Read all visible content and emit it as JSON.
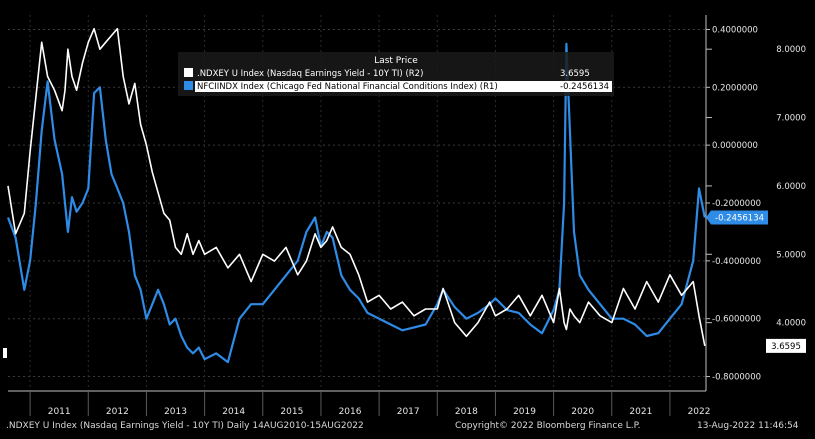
{
  "chart_data": {
    "type": "line",
    "legend_header": "Last Price",
    "x": [
      2010.62,
      2010.75,
      2010.9,
      2011.0,
      2011.1,
      2011.2,
      2011.3,
      2011.42,
      2011.55,
      2011.6,
      2011.65,
      2011.72,
      2011.8,
      2011.9,
      2012.0,
      2012.1,
      2012.2,
      2012.3,
      2012.4,
      2012.5,
      2012.6,
      2012.7,
      2012.8,
      2012.9,
      2013.0,
      2013.1,
      2013.2,
      2013.3,
      2013.4,
      2013.5,
      2013.6,
      2013.7,
      2013.8,
      2013.9,
      2014.0,
      2014.2,
      2014.4,
      2014.6,
      2014.8,
      2015.0,
      2015.2,
      2015.4,
      2015.6,
      2015.75,
      2015.9,
      2016.0,
      2016.1,
      2016.2,
      2016.35,
      2016.5,
      2016.65,
      2016.8,
      2017.0,
      2017.2,
      2017.4,
      2017.6,
      2017.8,
      2018.0,
      2018.1,
      2018.3,
      2018.5,
      2018.7,
      2018.9,
      2019.0,
      2019.2,
      2019.4,
      2019.6,
      2019.8,
      2020.0,
      2020.1,
      2020.18,
      2020.22,
      2020.28,
      2020.35,
      2020.45,
      2020.6,
      2020.8,
      2021.0,
      2021.2,
      2021.4,
      2021.6,
      2021.8,
      2022.0,
      2022.2,
      2022.4,
      2022.5,
      2022.6
    ],
    "series": [
      {
        "name": ".NDXEY U Index (Nasdaq Earnings Yield - 10Y TI)  (R2)",
        "axis": "right",
        "color": "#ffffff",
        "last_value": "3.6595",
        "values": [
          6.0,
          5.3,
          5.6,
          6.5,
          7.3,
          8.1,
          7.6,
          7.4,
          7.1,
          7.4,
          8.0,
          7.6,
          7.4,
          7.8,
          8.1,
          8.3,
          8.0,
          8.1,
          8.2,
          8.3,
          7.6,
          7.2,
          7.5,
          6.9,
          6.6,
          6.2,
          5.9,
          5.6,
          5.5,
          5.1,
          5.0,
          5.3,
          5.0,
          5.2,
          5.0,
          5.1,
          4.8,
          5.0,
          4.6,
          5.0,
          4.9,
          5.1,
          4.7,
          4.9,
          5.3,
          5.1,
          5.2,
          5.4,
          5.1,
          5.0,
          4.7,
          4.3,
          4.4,
          4.2,
          4.3,
          4.1,
          4.2,
          4.2,
          4.5,
          4.0,
          3.8,
          4.0,
          4.3,
          4.1,
          4.2,
          4.4,
          4.1,
          4.4,
          4.0,
          4.5,
          4.0,
          3.9,
          4.2,
          4.1,
          4.0,
          4.3,
          4.1,
          4.0,
          4.5,
          4.2,
          4.6,
          4.3,
          4.7,
          4.4,
          4.6,
          4.1,
          3.66
        ]
      },
      {
        "name": "NFCIINDX Index (Chicago Fed National Financial Conditions Index)  (R1)",
        "axis": "left",
        "color": "#2e8be6",
        "last_value": "-0.2456134",
        "values": [
          -0.25,
          -0.32,
          -0.5,
          -0.4,
          -0.2,
          0.05,
          0.22,
          0.02,
          -0.1,
          -0.2,
          -0.3,
          -0.18,
          -0.23,
          -0.2,
          -0.15,
          0.18,
          0.2,
          0.02,
          -0.1,
          -0.15,
          -0.2,
          -0.3,
          -0.45,
          -0.5,
          -0.6,
          -0.55,
          -0.5,
          -0.55,
          -0.62,
          -0.6,
          -0.66,
          -0.7,
          -0.72,
          -0.7,
          -0.74,
          -0.72,
          -0.75,
          -0.6,
          -0.55,
          -0.55,
          -0.5,
          -0.45,
          -0.4,
          -0.3,
          -0.25,
          -0.35,
          -0.3,
          -0.32,
          -0.45,
          -0.5,
          -0.53,
          -0.58,
          -0.6,
          -0.62,
          -0.64,
          -0.63,
          -0.62,
          -0.55,
          -0.5,
          -0.56,
          -0.6,
          -0.58,
          -0.55,
          -0.53,
          -0.57,
          -0.58,
          -0.62,
          -0.65,
          -0.57,
          -0.5,
          -0.2,
          0.35,
          0.05,
          -0.3,
          -0.45,
          -0.5,
          -0.55,
          -0.6,
          -0.6,
          -0.62,
          -0.66,
          -0.65,
          -0.6,
          -0.55,
          -0.4,
          -0.15,
          -0.25
        ]
      }
    ],
    "left_axis": {
      "ylim": [
        -0.85,
        0.45
      ],
      "ticks": [
        "0.4000000",
        "0.2000000",
        "0.0000000",
        "-0.2000000",
        "-0.4000000",
        "-0.6000000",
        "-0.8000000"
      ],
      "tick_values": [
        0.4,
        0.2,
        0.0,
        -0.2,
        -0.4,
        -0.6,
        -0.8
      ]
    },
    "right_axis": {
      "ylim": [
        3.0,
        8.5
      ],
      "ticks": [
        "8.0000",
        "7.0000",
        "6.0000",
        "5.0000",
        "4.0000"
      ],
      "tick_values": [
        8.0,
        7.0,
        6.0,
        5.0,
        4.0
      ]
    },
    "xlim": [
      2010.62,
      2022.62
    ],
    "x_ticks": [
      "2011",
      "2012",
      "2013",
      "2014",
      "2015",
      "2016",
      "2017",
      "2018",
      "2019",
      "2020",
      "2021",
      "2022"
    ],
    "x_tick_values": [
      2011.0,
      2012.0,
      2013.0,
      2014.0,
      2015.0,
      2016.0,
      2017.0,
      2018.0,
      2019.0,
      2020.0,
      2021.0,
      2022.0
    ],
    "grid": true
  },
  "footer": {
    "description": ".NDXEY U Index (Nasdaq Earnings Yield - 10Y TI)  Daily 14AUG2010-15AUG2022",
    "copyright": "Copyright© 2022 Bloomberg Finance L.P.",
    "timestamp": "13-Aug-2022 11:46:54"
  }
}
